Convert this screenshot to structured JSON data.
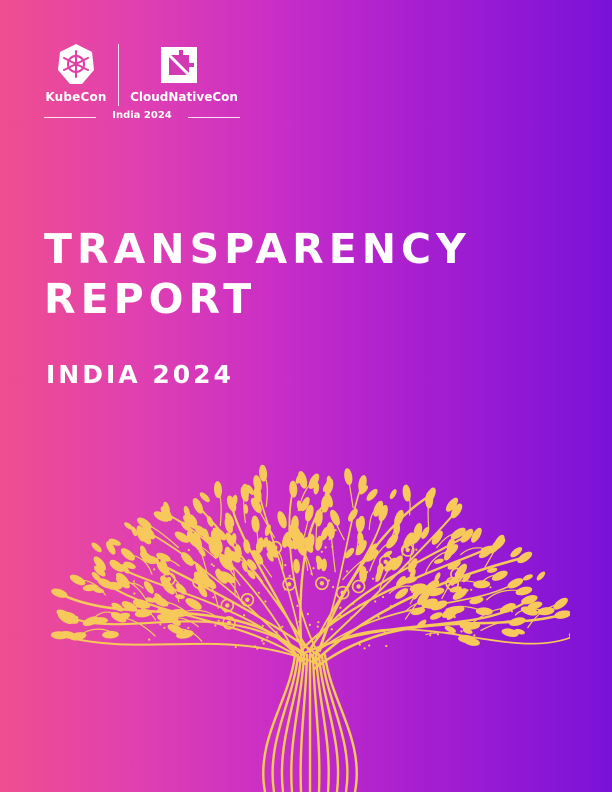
{
  "logo": {
    "primary": "KubeCon",
    "secondary": "CloudNativeCon",
    "edition": "India 2024",
    "icons": [
      "kubernetes-helm-icon",
      "cncf-icon"
    ]
  },
  "title_line1": "TRANSPARENCY",
  "title_line2": "REPORT",
  "subtitle": "INDIA 2024",
  "colors": {
    "gradient_start": "#f04e8f",
    "gradient_end": "#7a12d8",
    "tree_gold": "#f6c95a",
    "text": "#ffffff"
  }
}
